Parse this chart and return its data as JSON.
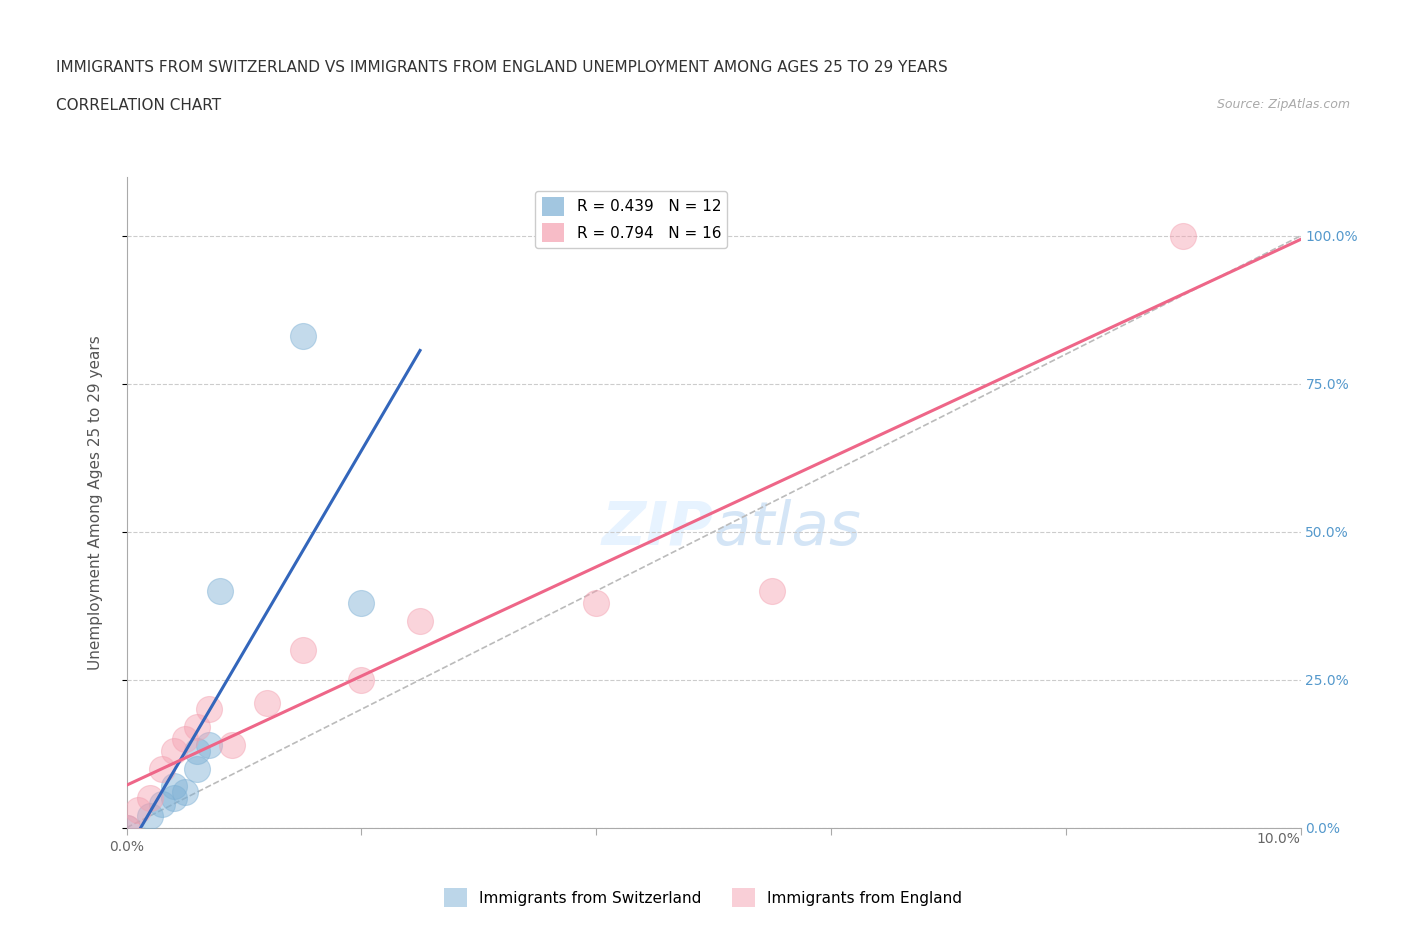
{
  "title_line1": "IMMIGRANTS FROM SWITZERLAND VS IMMIGRANTS FROM ENGLAND UNEMPLOYMENT AMONG AGES 25 TO 29 YEARS",
  "title_line2": "CORRELATION CHART",
  "source": "Source: ZipAtlas.com",
  "ylabel": "Unemployment Among Ages 25 to 29 years",
  "xlim": [
    0.0,
    0.1
  ],
  "ylim": [
    0.0,
    1.1
  ],
  "x_ticks": [
    0.0,
    0.02,
    0.04,
    0.06,
    0.08,
    0.1
  ],
  "y_tick_labels": [
    "0.0%",
    "25.0%",
    "50.0%",
    "75.0%",
    "100.0%"
  ],
  "y_ticks": [
    0.0,
    0.25,
    0.5,
    0.75,
    1.0
  ],
  "r_switzerland": 0.439,
  "n_switzerland": 12,
  "r_england": 0.794,
  "n_england": 16,
  "color_switzerland": "#7BAFD4",
  "color_england": "#F4A0B0",
  "color_diag": "#BBBBBB",
  "switzerland_x": [
    0.0,
    0.002,
    0.003,
    0.004,
    0.004,
    0.005,
    0.006,
    0.006,
    0.007,
    0.008,
    0.015,
    0.02
  ],
  "switzerland_y": [
    0.0,
    0.02,
    0.04,
    0.05,
    0.07,
    0.06,
    0.1,
    0.13,
    0.14,
    0.4,
    0.83,
    0.38
  ],
  "england_x": [
    0.0,
    0.001,
    0.002,
    0.003,
    0.004,
    0.005,
    0.006,
    0.007,
    0.009,
    0.012,
    0.015,
    0.02,
    0.025,
    0.04,
    0.055,
    0.09
  ],
  "england_y": [
    0.0,
    0.03,
    0.05,
    0.1,
    0.13,
    0.15,
    0.17,
    0.2,
    0.14,
    0.21,
    0.3,
    0.25,
    0.35,
    0.38,
    0.4,
    1.0
  ],
  "sw_line_x": [
    0.0,
    0.025
  ],
  "en_line_x": [
    0.0,
    0.1
  ],
  "background_color": "#FFFFFF",
  "grid_color": "#CCCCCC",
  "title_fontsize": 11,
  "axis_label_fontsize": 11,
  "right_tick_color": "#5599CC"
}
